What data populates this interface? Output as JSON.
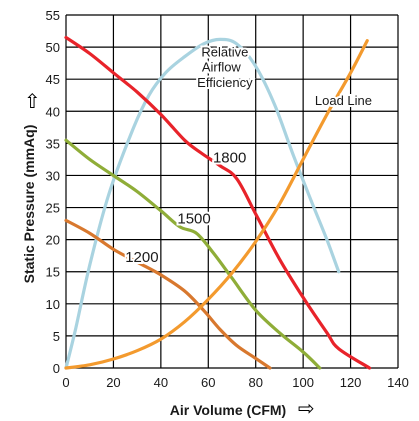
{
  "chart_data": {
    "type": "line",
    "xlabel": "Air Volume (CFM)",
    "ylabel": "Static Pressure (mmAq)",
    "xlim": [
      0,
      140
    ],
    "ylim": [
      0,
      55
    ],
    "xticks": [
      0,
      20,
      40,
      60,
      80,
      100,
      120,
      140
    ],
    "yticks": [
      0,
      5,
      10,
      15,
      20,
      25,
      30,
      35,
      40,
      45,
      50,
      55
    ],
    "grid": true,
    "axis_arrows": {
      "x": "⇨",
      "y": "⇧"
    },
    "series": [
      {
        "name": "1800",
        "color": "#e8232a",
        "points": [
          [
            0,
            51.5
          ],
          [
            10,
            49
          ],
          [
            20,
            46
          ],
          [
            30,
            43
          ],
          [
            40,
            39.5
          ],
          [
            50,
            35.5
          ],
          [
            57,
            33.5
          ],
          [
            65,
            31.5
          ],
          [
            72,
            29.5
          ],
          [
            80,
            24
          ],
          [
            90,
            17
          ],
          [
            100,
            11
          ],
          [
            110,
            5.5
          ],
          [
            115,
            3
          ],
          [
            128,
            0
          ]
        ]
      },
      {
        "name": "1500",
        "color": "#8fad38",
        "points": [
          [
            0,
            35.5
          ],
          [
            10,
            32.5
          ],
          [
            20,
            30
          ],
          [
            30,
            27.5
          ],
          [
            40,
            24.5
          ],
          [
            48,
            22
          ],
          [
            55,
            21
          ],
          [
            62,
            18
          ],
          [
            70,
            14
          ],
          [
            80,
            9
          ],
          [
            90,
            5.5
          ],
          [
            100,
            2.5
          ],
          [
            107,
            0
          ]
        ]
      },
      {
        "name": "1200",
        "color": "#d8782e",
        "points": [
          [
            0,
            23
          ],
          [
            10,
            21
          ],
          [
            20,
            18.5
          ],
          [
            30,
            16.5
          ],
          [
            40,
            14.5
          ],
          [
            50,
            12
          ],
          [
            58,
            9
          ],
          [
            65,
            6
          ],
          [
            72,
            3.5
          ],
          [
            80,
            1.5
          ],
          [
            86,
            0
          ]
        ]
      },
      {
        "name": "Load Line",
        "color": "#f39a2e",
        "points": [
          [
            0,
            0
          ],
          [
            10,
            0.5
          ],
          [
            20,
            1.4
          ],
          [
            30,
            2.7
          ],
          [
            40,
            4.5
          ],
          [
            50,
            7.2
          ],
          [
            60,
            10.7
          ],
          [
            70,
            14.8
          ],
          [
            80,
            19.7
          ],
          [
            90,
            25.5
          ],
          [
            100,
            32.5
          ],
          [
            110,
            39.5
          ],
          [
            120,
            46
          ],
          [
            127,
            51
          ]
        ]
      },
      {
        "name": "Relative Airflow Efficiency",
        "color": "#a9d3e0",
        "points": [
          [
            0,
            0
          ],
          [
            4,
            6
          ],
          [
            10,
            16
          ],
          [
            18,
            27
          ],
          [
            28,
            37
          ],
          [
            35,
            42.5
          ],
          [
            42,
            46
          ],
          [
            50,
            48.5
          ],
          [
            58,
            50.5
          ],
          [
            65,
            51.2
          ],
          [
            72,
            50.5
          ],
          [
            80,
            47
          ],
          [
            88,
            41
          ],
          [
            96,
            33
          ],
          [
            104,
            25.5
          ],
          [
            110,
            20
          ],
          [
            115,
            15
          ]
        ]
      }
    ],
    "annotations": [
      {
        "text": "1800",
        "x": 69,
        "y": 32
      },
      {
        "text": "1500",
        "x": 54,
        "y": 22.5
      },
      {
        "text": "1200",
        "x": 32,
        "y": 16.5
      },
      {
        "text": "Load Line",
        "x": 117,
        "y": 41
      },
      {
        "text": "Relative",
        "x": 67,
        "y": 48.5
      },
      {
        "text": "Airflow",
        "x": 65.5,
        "y": 46.2
      },
      {
        "text": "Efficiency",
        "x": 67,
        "y": 43.8
      }
    ]
  }
}
